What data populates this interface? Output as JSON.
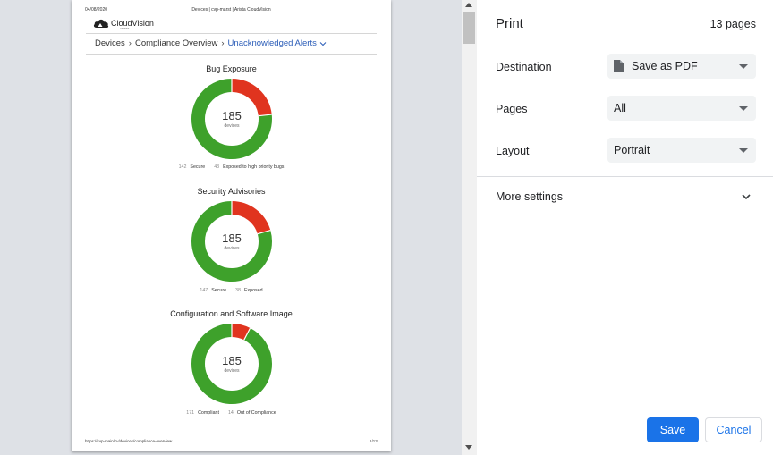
{
  "preview": {
    "header_date": "04/08/2020",
    "header_title": "Devices | cvp-marst | Arista CloudVision",
    "logo_text": "CloudVision",
    "logo_sub": "ARISTA",
    "breadcrumb": {
      "items": [
        "Devices",
        "Compliance Overview",
        "Unacknowledged Alerts"
      ]
    },
    "charts_text": [
      {
        "title": "Bug Exposure",
        "center_value": "185",
        "center_label": "devices",
        "legend": [
          {
            "count": "142",
            "label": "Secure"
          },
          {
            "count": "43",
            "label": "Exposed to high priority bugs"
          }
        ]
      },
      {
        "title": "Security Advisories",
        "center_value": "185",
        "center_label": "devices",
        "legend": [
          {
            "count": "147",
            "label": "Secure"
          },
          {
            "count": "38",
            "label": "Exposed"
          }
        ]
      },
      {
        "title": "Configuration and Software Image",
        "center_value": "185",
        "center_label": "devices",
        "legend": [
          {
            "count": "171",
            "label": "Compliant"
          },
          {
            "count": "14",
            "label": "Out of Compliance"
          }
        ]
      }
    ],
    "footer_url": "https://cvp-main/cv/devices/compliance-overview",
    "footer_page": "1/13"
  },
  "chart_data": [
    {
      "type": "pie",
      "title": "Bug Exposure",
      "categories": [
        "Secure",
        "Exposed to high priority bugs"
      ],
      "values": [
        142,
        43
      ],
      "colors": [
        "#3ea12b",
        "#e0341f"
      ]
    },
    {
      "type": "pie",
      "title": "Security Advisories",
      "categories": [
        "Secure",
        "Exposed"
      ],
      "values": [
        147,
        38
      ],
      "colors": [
        "#3ea12b",
        "#e0341f"
      ]
    },
    {
      "type": "pie",
      "title": "Configuration and Software Image",
      "categories": [
        "Compliant",
        "Out of Compliance"
      ],
      "values": [
        171,
        14
      ],
      "colors": [
        "#3ea12b",
        "#e0341f"
      ]
    }
  ],
  "settings": {
    "title": "Print",
    "page_count": "13 pages",
    "destination": {
      "label": "Destination",
      "value": "Save as PDF",
      "icon": "file-icon"
    },
    "pages": {
      "label": "Pages",
      "value": "All"
    },
    "layout": {
      "label": "Layout",
      "value": "Portrait"
    },
    "more_settings": "More settings",
    "save_label": "Save",
    "cancel_label": "Cancel"
  },
  "colors": {
    "accent": "#1a73e8",
    "green": "#3ea12b",
    "red": "#e0341f"
  }
}
